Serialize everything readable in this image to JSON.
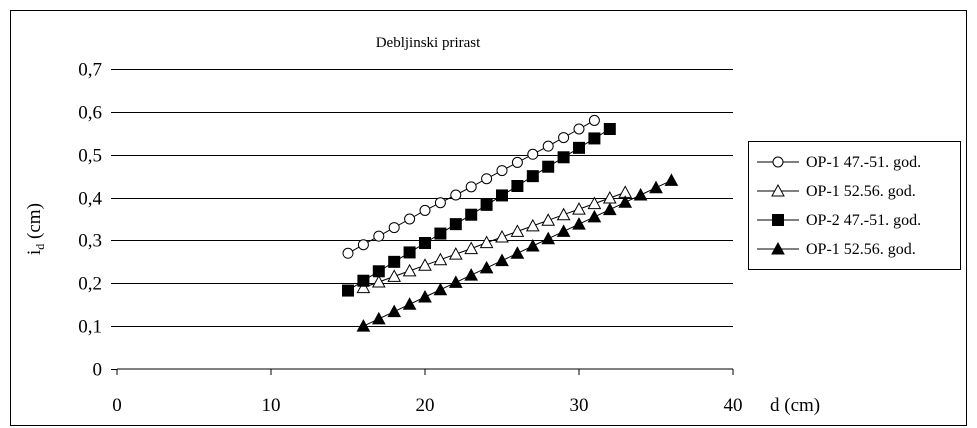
{
  "chart_data": {
    "type": "line",
    "title": "Debljinski prirast",
    "xlabel": "d (cm)",
    "ylabel": "i",
    "ylabel_subscript": "d",
    "ylabel_unit": " (cm)",
    "xlim": [
      0,
      40
    ],
    "ylim": [
      0,
      0.7
    ],
    "x_ticks": [
      0,
      10,
      20,
      30,
      40
    ],
    "x_tick_labels": [
      "0",
      "10",
      "20",
      "30",
      "40"
    ],
    "y_ticks": [
      0,
      0.1,
      0.2,
      0.3,
      0.4,
      0.5,
      0.6,
      0.7
    ],
    "y_tick_labels": [
      "0",
      "0,1",
      "0,2",
      "0,3",
      "0,4",
      "0,5",
      "0,6",
      "0,7"
    ],
    "grid": "horizontal",
    "legend_position": "right",
    "series": [
      {
        "name": "OP-1 47.-51. god.",
        "marker": "circle-open",
        "x": [
          15,
          16,
          17,
          18,
          19,
          20,
          21,
          22,
          23,
          24,
          25,
          26,
          27,
          28,
          29,
          30,
          31
        ],
        "y": [
          0.27,
          0.29,
          0.31,
          0.33,
          0.35,
          0.37,
          0.388,
          0.406,
          0.425,
          0.444,
          0.463,
          0.482,
          0.501,
          0.52,
          0.54,
          0.56,
          0.58
        ]
      },
      {
        "name": "OP-1 52.56. god.",
        "marker": "triangle-open",
        "x": [
          16,
          17,
          18,
          19,
          20,
          21,
          22,
          23,
          24,
          25,
          26,
          27,
          28,
          29,
          30,
          31,
          32,
          33
        ],
        "y": [
          0.19,
          0.203,
          0.216,
          0.229,
          0.242,
          0.255,
          0.268,
          0.281,
          0.295,
          0.308,
          0.321,
          0.334,
          0.347,
          0.36,
          0.373,
          0.386,
          0.399,
          0.412
        ]
      },
      {
        "name": "OP-2 47.-51. god.",
        "marker": "square-filled",
        "x": [
          15,
          16,
          17,
          18,
          19,
          20,
          21,
          22,
          23,
          24,
          25,
          26,
          27,
          28,
          29,
          30,
          31,
          32
        ],
        "y": [
          0.183,
          0.206,
          0.228,
          0.25,
          0.272,
          0.294,
          0.316,
          0.338,
          0.36,
          0.383,
          0.405,
          0.427,
          0.45,
          0.472,
          0.494,
          0.516,
          0.538,
          0.56
        ]
      },
      {
        "name": "OP-1 52.56. god.",
        "marker": "triangle-filled",
        "x": [
          16,
          17,
          18,
          19,
          20,
          21,
          22,
          23,
          24,
          25,
          26,
          27,
          28,
          29,
          30,
          31,
          32,
          33,
          34,
          35,
          36
        ],
        "y": [
          0.1,
          0.117,
          0.134,
          0.151,
          0.168,
          0.185,
          0.202,
          0.219,
          0.236,
          0.253,
          0.27,
          0.287,
          0.304,
          0.321,
          0.338,
          0.355,
          0.372,
          0.389,
          0.406,
          0.423,
          0.44
        ]
      }
    ]
  },
  "colors": {
    "stroke": "#000000",
    "background": "#ffffff",
    "frame": "#000000"
  }
}
